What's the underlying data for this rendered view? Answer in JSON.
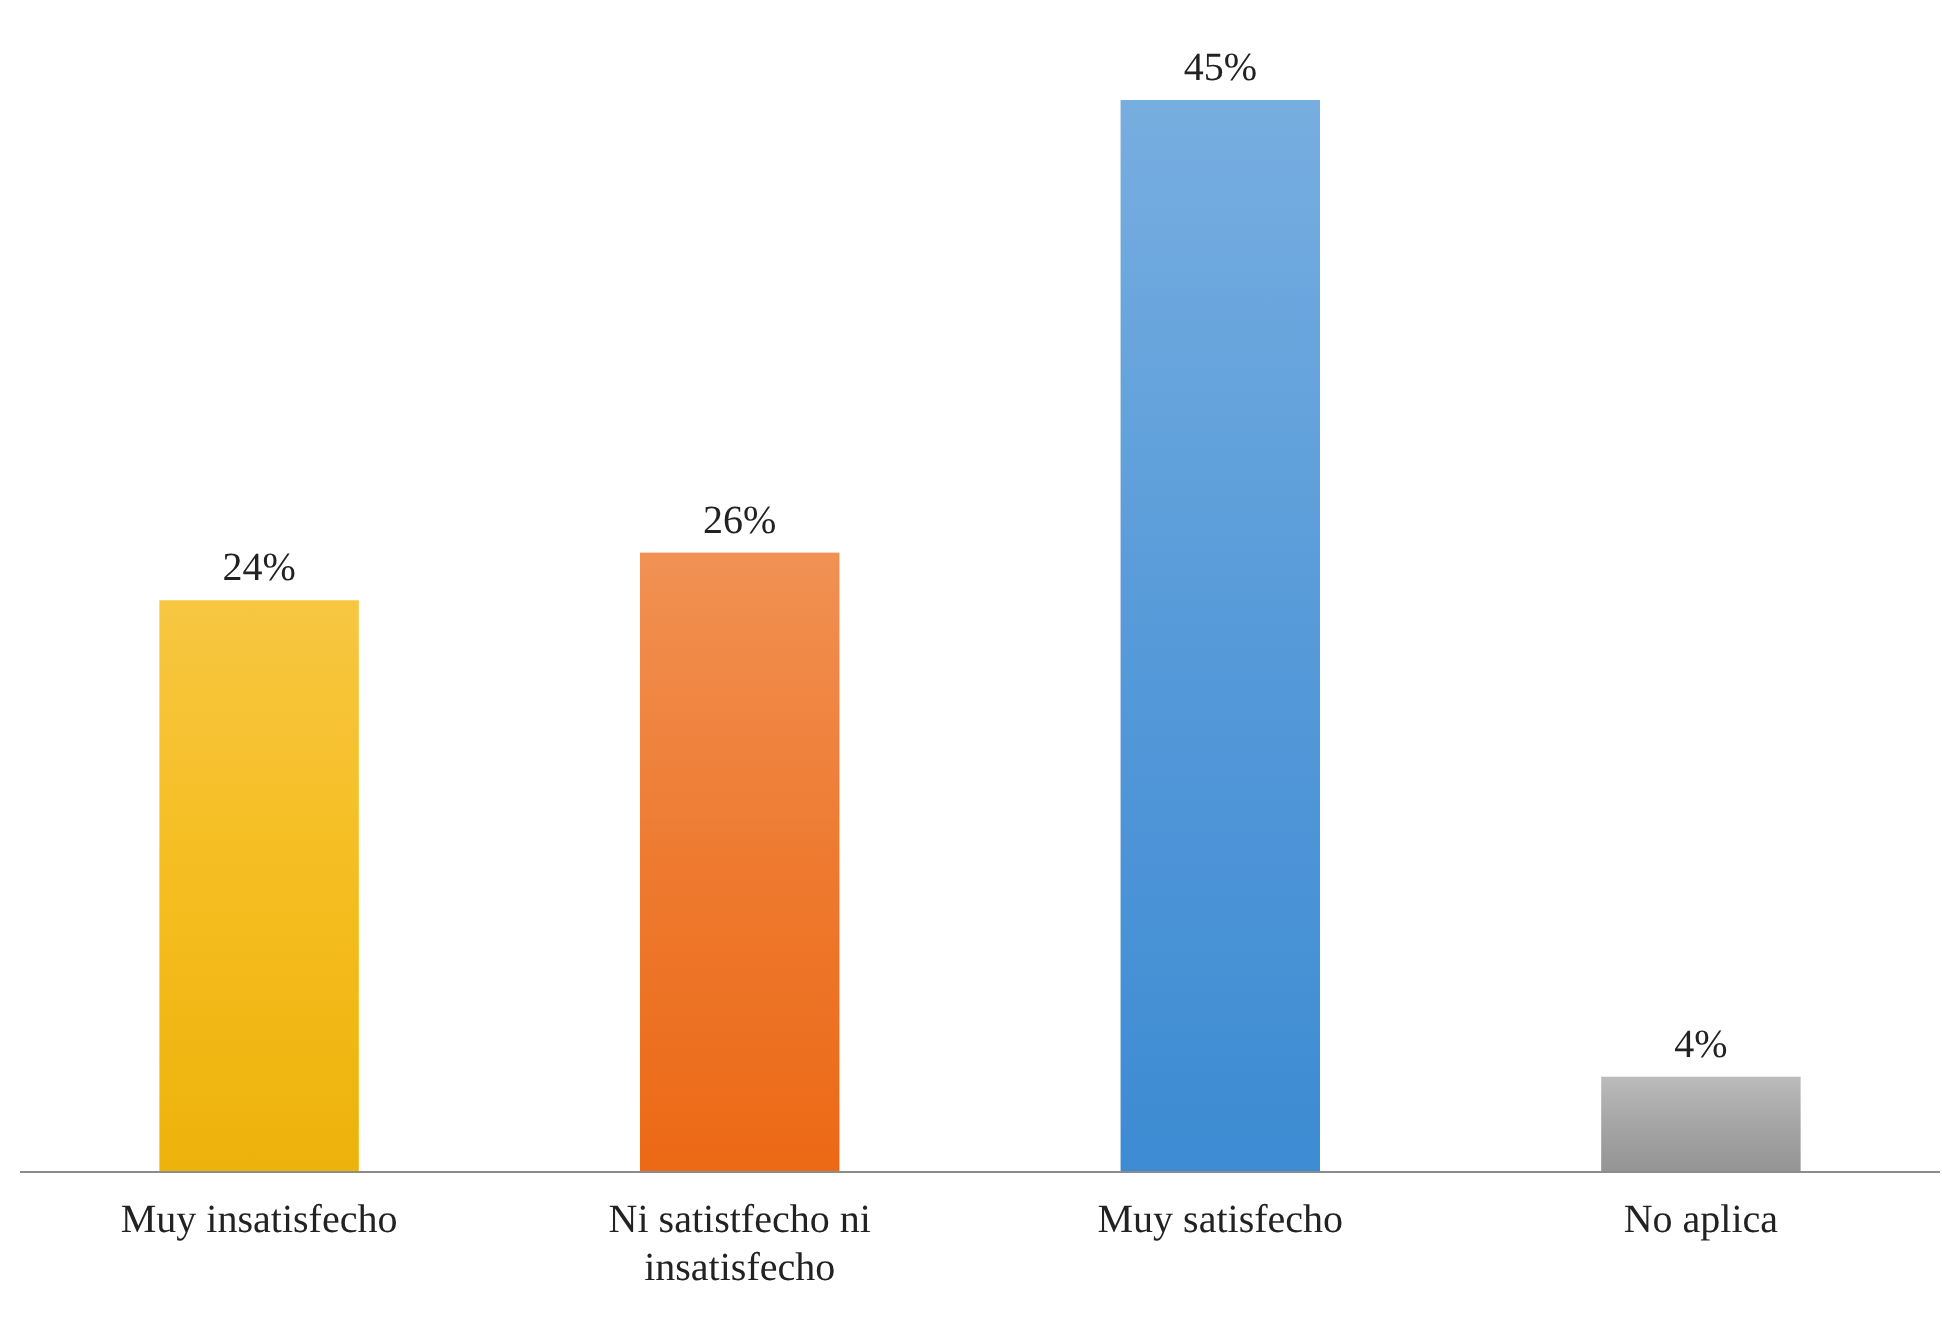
{
  "chart_data": {
    "type": "bar",
    "categories": [
      "Muy insatisfecho",
      "Ni satistfecho ni insatisfecho",
      "Muy satisfecho",
      "No aplica"
    ],
    "values": [
      24,
      26,
      45,
      4
    ],
    "colors": [
      "#f5bd1f",
      "#ee7a30",
      "#569ad9",
      "#a5a5a5"
    ],
    "value_labels": [
      "24%",
      "26%",
      "45%",
      "4%"
    ]
  }
}
